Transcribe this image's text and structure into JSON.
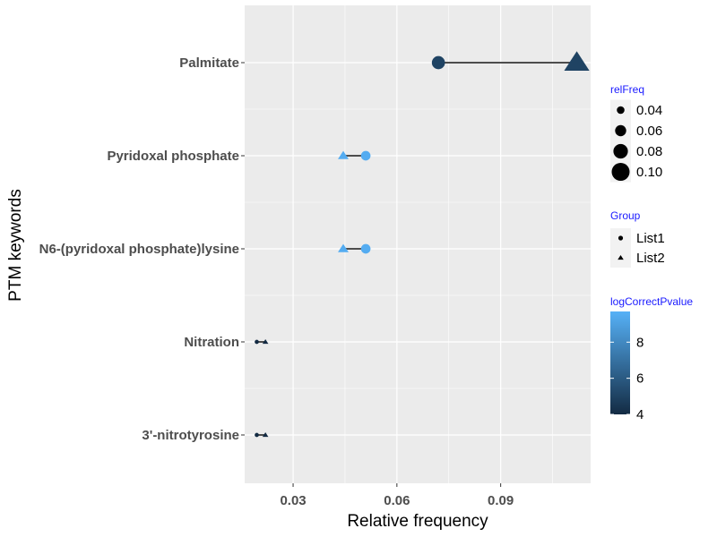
{
  "chart_data": {
    "type": "dumbbell",
    "xlabel": "Relative frequency",
    "ylabel": "PTM keywords",
    "xlim": [
      0.016,
      0.116
    ],
    "x_ticks": [
      0.03,
      0.06,
      0.09
    ],
    "x_tick_labels": [
      "0.03",
      "0.06",
      "0.09"
    ],
    "categories": [
      "Palmitate",
      "Pyridoxal phosphate",
      "N6-(pyridoxal phosphate)lysine",
      "Nitration",
      "3'-nitrotyrosine"
    ],
    "series": [
      {
        "name": "List1",
        "shape": "circle",
        "values": [
          0.072,
          0.051,
          0.051,
          0.0195,
          0.0195
        ]
      },
      {
        "name": "List2",
        "shape": "triangle",
        "values": [
          0.112,
          0.0445,
          0.0445,
          0.022,
          0.022
        ]
      }
    ],
    "logCorrectPvalue": [
      5.0,
      9.5,
      9.5,
      4.0,
      4.0
    ],
    "grid": true,
    "legend_position": "right",
    "legends": {
      "size": {
        "title": "relFreq",
        "labels": [
          "0.04",
          "0.06",
          "0.08",
          "0.10"
        ],
        "values": [
          0.04,
          0.06,
          0.08,
          0.1
        ]
      },
      "shape": {
        "title": "Group",
        "labels": [
          "List1",
          "List2"
        ]
      },
      "color": {
        "title": "logCorrectPvalue",
        "labels": [
          "4",
          "6",
          "8"
        ],
        "values": [
          4,
          6,
          8
        ],
        "range": [
          4,
          9.7
        ],
        "low_color": "#132B43",
        "high_color": "#56B1F7"
      }
    },
    "colors": {
      "panel_bg": "#ebebeb",
      "grid": "#ffffff",
      "segment": "#4d4d4d"
    }
  }
}
